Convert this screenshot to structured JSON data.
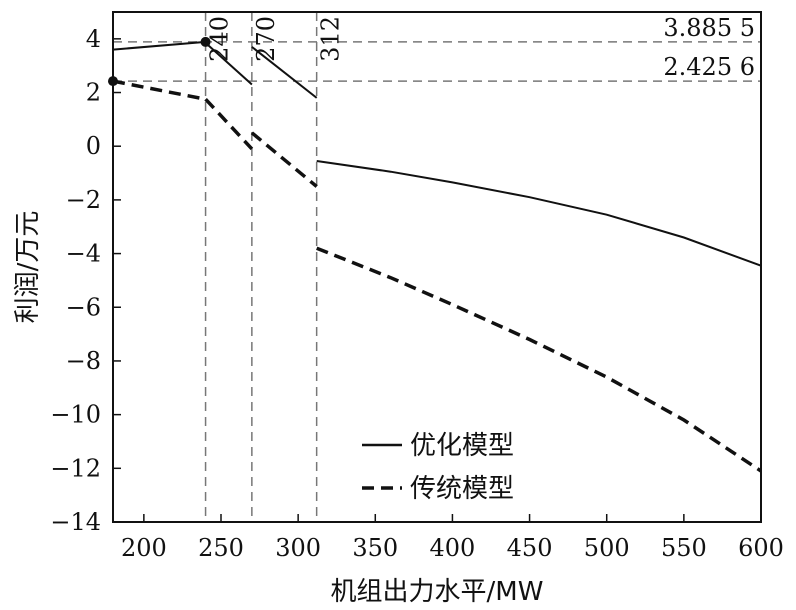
{
  "chart_data": {
    "type": "line",
    "xlabel": "机组出力水平/MW",
    "ylabel": "利润/万元",
    "xlim": [
      180,
      600
    ],
    "ylim": [
      -14,
      5
    ],
    "x_ticks": [
      200,
      250,
      300,
      350,
      400,
      450,
      500,
      550,
      600
    ],
    "y_ticks": [
      4,
      2,
      0,
      -2,
      -4,
      -6,
      -8,
      -10,
      -12,
      -14
    ],
    "y_tick_labels": [
      "4",
      "2",
      "0",
      "−2",
      "−4",
      "−6",
      "−8",
      "−10",
      "−12",
      "−14"
    ],
    "legend_position": "bottom-center",
    "series": [
      {
        "name": "优化模型",
        "style": "solid",
        "segments": [
          [
            [
              180,
              3.6
            ],
            [
              240,
              3.8855
            ]
          ],
          [
            [
              240,
              3.85
            ],
            [
              270,
              2.3
            ]
          ],
          [
            [
              270,
              3.7
            ],
            [
              312,
              1.8
            ]
          ],
          [
            [
              312,
              -0.55
            ],
            [
              360,
              -0.95
            ],
            [
              400,
              -1.35
            ],
            [
              450,
              -1.9
            ],
            [
              500,
              -2.55
            ],
            [
              550,
              -3.4
            ],
            [
              600,
              -4.45
            ]
          ]
        ]
      },
      {
        "name": "传统模型",
        "style": "dashed",
        "segments": [
          [
            [
              180,
              2.4256
            ],
            [
              240,
              1.75
            ]
          ],
          [
            [
              240,
              1.75
            ],
            [
              270,
              -0.1
            ]
          ],
          [
            [
              270,
              0.5
            ],
            [
              312,
              -1.5
            ]
          ],
          [
            [
              312,
              -3.8
            ],
            [
              360,
              -4.9
            ],
            [
              400,
              -5.9
            ],
            [
              450,
              -7.2
            ],
            [
              500,
              -8.6
            ],
            [
              550,
              -10.2
            ],
            [
              600,
              -12.1
            ]
          ]
        ]
      }
    ],
    "markers": [
      {
        "x": 240,
        "y": 3.8855
      },
      {
        "x": 180,
        "y": 2.4256
      }
    ],
    "vertical_lines": [
      {
        "x": 240,
        "label": "240"
      },
      {
        "x": 270,
        "label": "270"
      },
      {
        "x": 312,
        "label": "312"
      }
    ],
    "horizontal_lines": [
      {
        "y": 3.8855,
        "label": "3.885 5"
      },
      {
        "y": 2.4256,
        "label": "2.425 6"
      }
    ]
  }
}
